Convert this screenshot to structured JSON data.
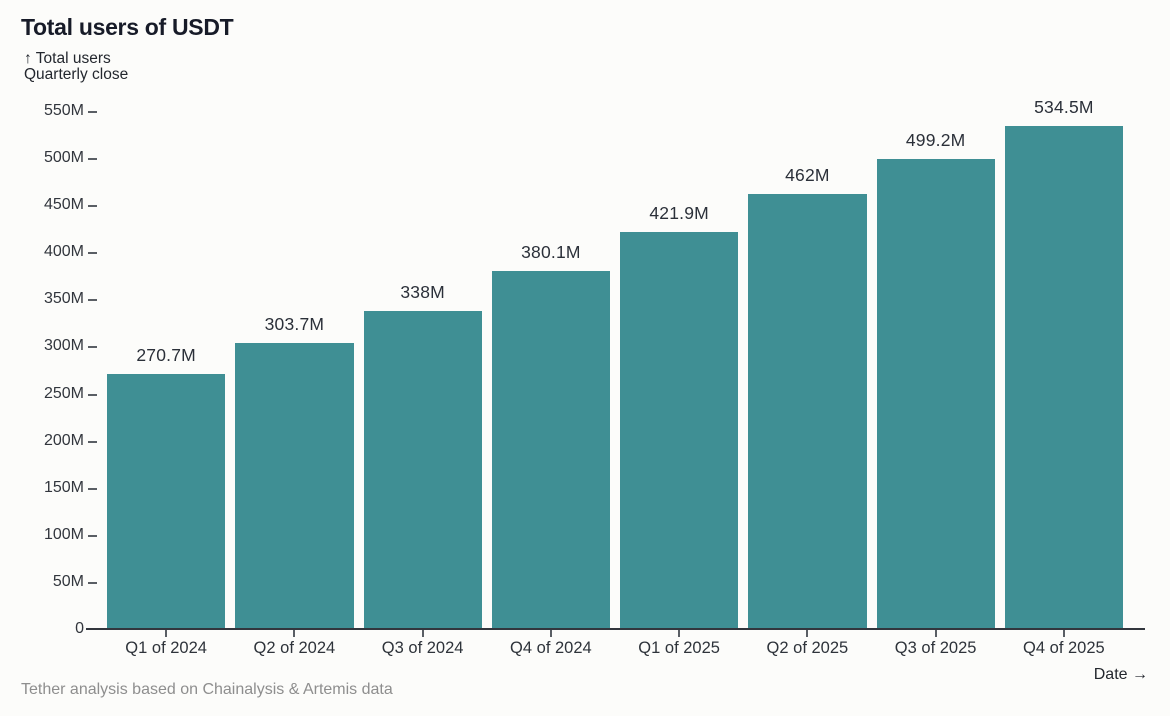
{
  "page": {
    "title": "Total users of USDT",
    "y_axis_caption_line1": "↑ Total users",
    "y_axis_caption_line2": "Quarterly close",
    "footer_note": "Tether analysis based on Chainalysis & Artemis data",
    "x_axis_caption": "Date →"
  },
  "chart_data": {
    "type": "bar",
    "title": "Total users of USDT",
    "xlabel": "Date",
    "ylabel": "Total users (Quarterly close)",
    "categories": [
      "Q1 of 2024",
      "Q2 of 2024",
      "Q3 of 2024",
      "Q4 of 2024",
      "Q1 of 2025",
      "Q2 of 2025",
      "Q3 of 2025",
      "Q4 of 2025"
    ],
    "values": [
      270.7,
      303.7,
      338,
      380.1,
      421.9,
      462,
      499.2,
      534.5
    ],
    "value_labels": [
      "270.7M",
      "303.7M",
      "338M",
      "380.1M",
      "421.9M",
      "462M",
      "499.2M",
      "534.5M"
    ],
    "unit": "M",
    "ylim": [
      0,
      550
    ],
    "y_ticks": [
      0,
      50,
      100,
      150,
      200,
      250,
      300,
      350,
      400,
      450,
      500,
      550
    ],
    "y_tick_labels": [
      "0",
      "50M",
      "100M",
      "150M",
      "200M",
      "250M",
      "300M",
      "350M",
      "400M",
      "450M",
      "500M",
      "550M"
    ],
    "grid": false,
    "legend": "none",
    "bar_color": "#3f8f94",
    "source_note": "Tether analysis based on Chainalysis & Artemis data"
  }
}
